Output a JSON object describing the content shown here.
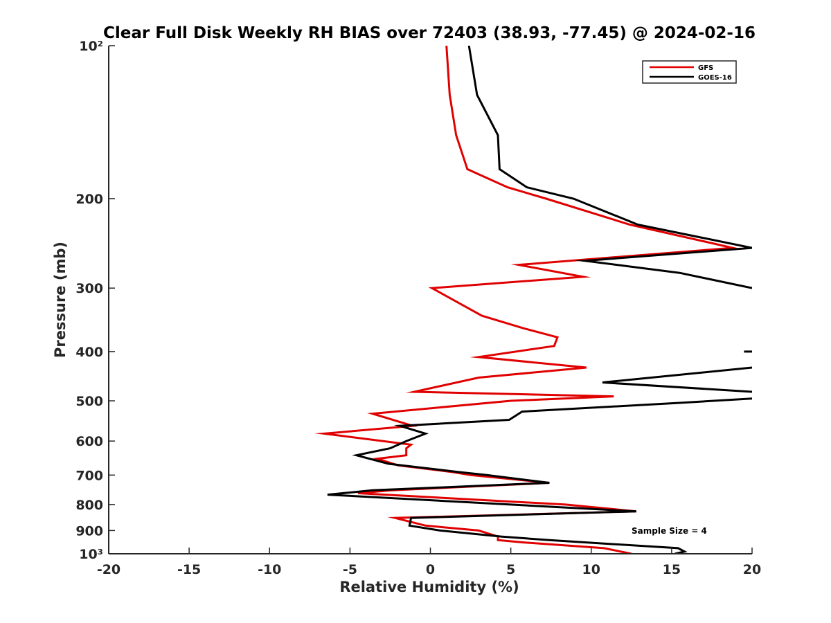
{
  "chart_data": {
    "type": "line",
    "title": "Clear Full Disk Weekly RH BIAS over 72403 (38.93, -77.45) @ 2024-02-16",
    "xlabel": "Relative Humidity (%)",
    "ylabel": "Pressure (mb)",
    "xlim": [
      -20,
      20
    ],
    "ylim": [
      100,
      1000
    ],
    "y_scale": "log",
    "y_reversed": true,
    "grid": false,
    "legend_position": "top-right",
    "x_ticks": [
      -20,
      -15,
      -10,
      -5,
      0,
      5,
      10,
      15,
      20
    ],
    "x_tick_labels": [
      "-20",
      "-15",
      "-10",
      "-5",
      "0",
      "5",
      "10",
      "15",
      "20"
    ],
    "y_ticks": [
      100,
      200,
      300,
      400,
      500,
      600,
      700,
      800,
      900,
      1000
    ],
    "y_tick_labels": [
      "10²",
      "200",
      "300",
      "400",
      "500",
      "600",
      "700",
      "800",
      "900",
      "10³"
    ],
    "annotation": "Sample Size = 4",
    "series": [
      {
        "name": "GFS",
        "color": "#e00000",
        "points": [
          [
            1.0,
            100
          ],
          [
            1.2,
            125
          ],
          [
            1.6,
            150
          ],
          [
            2.3,
            175
          ],
          [
            4.8,
            190
          ],
          [
            7.2,
            200
          ],
          [
            12.4,
            225
          ],
          [
            18.8,
            250
          ],
          [
            5.5,
            270
          ],
          [
            9.5,
            285
          ],
          [
            0.1,
            300
          ],
          [
            3.2,
            340
          ],
          [
            5.8,
            360
          ],
          [
            7.9,
            375
          ],
          [
            7.7,
            390
          ],
          [
            3.0,
            410
          ],
          [
            9.7,
            430
          ],
          [
            3.0,
            450
          ],
          [
            -1.0,
            480
          ],
          [
            11.4,
            490
          ],
          [
            5.0,
            500
          ],
          [
            -3.6,
            530
          ],
          [
            -1.1,
            560
          ],
          [
            -6.6,
            580
          ],
          [
            -1.2,
            610
          ],
          [
            -1.5,
            620
          ],
          [
            -1.5,
            640
          ],
          [
            -3.3,
            650
          ],
          [
            -2.0,
            670
          ],
          [
            1.3,
            690
          ],
          [
            2.5,
            700
          ],
          [
            7.4,
            725
          ],
          [
            -2.4,
            750
          ],
          [
            -4.5,
            760
          ],
          [
            8.4,
            800
          ],
          [
            12.8,
            825
          ],
          [
            -2.2,
            850
          ],
          [
            -0.3,
            880
          ],
          [
            3.0,
            900
          ],
          [
            4.2,
            925
          ],
          [
            4.2,
            940
          ],
          [
            5.8,
            950
          ],
          [
            10.8,
            975
          ],
          [
            12.5,
            1000
          ]
        ]
      },
      {
        "name": "GOES-16",
        "color": "#000000",
        "segments": [
          [
            [
              2.4,
              100
            ],
            [
              2.9,
              125
            ],
            [
              4.2,
              150
            ],
            [
              4.3,
              175
            ],
            [
              6.0,
              190
            ],
            [
              8.9,
              200
            ],
            [
              12.9,
              225
            ],
            [
              20.0,
              250
            ],
            [
              9.6,
              265
            ],
            [
              15.5,
              280
            ],
            [
              20.0,
              300
            ]
          ],
          [
            [
              19.5,
              400
            ],
            [
              20.0,
              400
            ]
          ],
          [
            [
              20.0,
              430
            ],
            [
              15.3,
              445
            ],
            [
              10.7,
              460
            ],
            [
              20.0,
              480
            ]
          ],
          [
            [
              20.0,
              495
            ],
            [
              15.3,
              505
            ],
            [
              5.7,
              525
            ],
            [
              4.9,
              545
            ],
            [
              -1.9,
              560
            ],
            [
              -0.3,
              580
            ],
            [
              -1.5,
              600
            ],
            [
              -2.5,
              620
            ],
            [
              -4.6,
              640
            ],
            [
              -2.6,
              665
            ],
            [
              1.7,
              690
            ],
            [
              3.5,
              700
            ],
            [
              7.4,
              725
            ],
            [
              -3.6,
              750
            ],
            [
              -6.4,
              765
            ],
            [
              5.0,
              800
            ],
            [
              12.8,
              825
            ],
            [
              -1.2,
              850
            ],
            [
              -1.3,
              880
            ],
            [
              0.6,
              900
            ],
            [
              4.4,
              925
            ],
            [
              7.4,
              940
            ],
            [
              15.4,
              975
            ],
            [
              15.8,
              990
            ],
            [
              15.2,
              1000
            ]
          ]
        ]
      }
    ]
  }
}
